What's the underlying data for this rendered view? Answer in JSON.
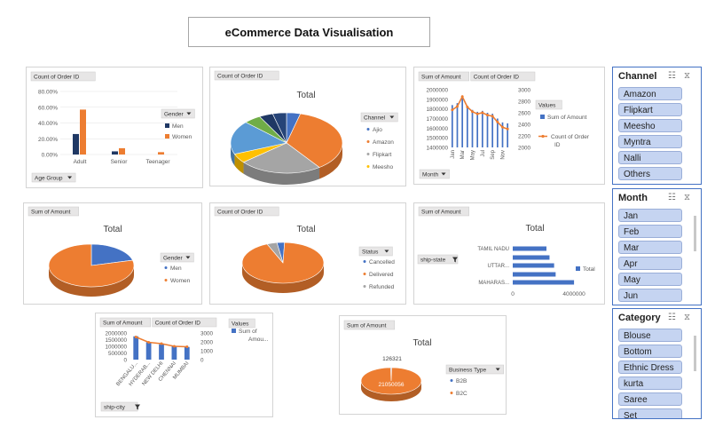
{
  "page_title": "eCommerce Data Visualisation",
  "colors": {
    "blue": "#4472c4",
    "orange": "#ed7d31",
    "gray": "#a5a5a5",
    "yellow": "#ffc000",
    "lightblue": "#5b9bd5",
    "green": "#70ad47",
    "navy": "#1f3864",
    "pill": "#e7e6e6"
  },
  "icons": {
    "filter": "filter-icon",
    "multi": "multi-select-icon",
    "clear": "clear-filter-icon",
    "dropdown": "dropdown-arrow-icon"
  },
  "charts": {
    "c1": {
      "field_btn": "Count of Order ID",
      "yticks": [
        "80.00%",
        "60.00%",
        "40.00%",
        "20.00%",
        "0.00%"
      ],
      "categories": [
        "Adult",
        "Senior",
        "Teenager"
      ],
      "legend_title": "Gender",
      "legend": [
        "Men",
        "Women"
      ],
      "axis_btn": "Age Group"
    },
    "c2": {
      "field_btn": "Count of Order ID",
      "title": "Total",
      "legend_title": "Channel",
      "legend": [
        "Ajio",
        "Amazon",
        "Flipkart",
        "Meesho"
      ]
    },
    "c3": {
      "field_btns": [
        "Sum of Amount",
        "Count of Order ID"
      ],
      "yticks_left": [
        "2000000",
        "1900000",
        "1800000",
        "1700000",
        "1600000",
        "1500000",
        "1400000"
      ],
      "yticks_right": [
        "3000",
        "2800",
        "2600",
        "2400",
        "2200",
        "2000"
      ],
      "xticks": [
        "Jan",
        "Mar",
        "May",
        "Jul",
        "Sep",
        "Nov"
      ],
      "legend_title": "Values",
      "legend": [
        "Sum of Amount",
        "Count of Order ID"
      ],
      "axis_btn": "Month"
    },
    "c4": {
      "field_btn": "Sum of Amount",
      "title": "Total",
      "legend_title": "Gender",
      "legend": [
        "Men",
        "Women"
      ]
    },
    "c5": {
      "field_btn": "Count of Order ID",
      "title": "Total",
      "legend_title": "Status",
      "legend": [
        "Cancelled",
        "Delivered",
        "Refunded"
      ]
    },
    "c6": {
      "field_btn": "Sum of Amount",
      "title": "Total",
      "axis_btn": "ship-state",
      "categories": [
        "TAMIL NADU",
        "UTTAR...",
        "MAHARAS..."
      ],
      "xticks": [
        "0",
        "4000000"
      ],
      "legend": [
        "Total"
      ]
    },
    "c7": {
      "field_btns": [
        "Sum of Amount",
        "Count of Order ID"
      ],
      "yticks_left": [
        "2000000",
        "1500000",
        "1000000",
        "500000",
        "0"
      ],
      "yticks_right": [
        "3000",
        "2000",
        "1000",
        "0"
      ],
      "categories": [
        "BENGALU...",
        "HYDERAB...",
        "NEW DELHI",
        "CHENNAI",
        "MUMBAI"
      ],
      "legend_title": "Values",
      "legend": [
        "Sum of Amou..."
      ],
      "axis_btn": "ship-city"
    },
    "c8": {
      "field_btn": "Sum of Amount",
      "title": "Total",
      "labels": [
        "126321",
        "21050056"
      ],
      "legend_title": "Business Type",
      "legend": [
        "B2B",
        "B2C"
      ]
    }
  },
  "chart_data": [
    {
      "type": "bar",
      "title": "",
      "categories": [
        "Adult",
        "Senior",
        "Teenager"
      ],
      "series": [
        {
          "name": "Men",
          "values": [
            0.26,
            0.04,
            0.0
          ]
        },
        {
          "name": "Women",
          "values": [
            0.57,
            0.08,
            0.03
          ]
        }
      ],
      "ylim": [
        0,
        0.8
      ]
    },
    {
      "type": "pie",
      "title": "Total",
      "slices": [
        {
          "label": "Ajio",
          "value": 0.04
        },
        {
          "label": "Amazon",
          "value": 0.36
        },
        {
          "label": "Flipkart",
          "value": 0.24
        },
        {
          "label": "Meesho",
          "value": 0.05
        },
        {
          "label": "",
          "value": 0.18
        },
        {
          "label": "",
          "value": 0.05
        },
        {
          "label": "",
          "value": 0.04
        },
        {
          "label": "",
          "value": 0.04
        }
      ]
    },
    {
      "type": "line",
      "title": "",
      "x": [
        "Jan",
        "Feb",
        "Mar",
        "Apr",
        "May",
        "Jun",
        "Jul",
        "Aug",
        "Sep",
        "Oct",
        "Nov",
        "Dec"
      ],
      "series": [
        {
          "name": "Sum of Amount",
          "values": [
            1840000,
            1860000,
            1910000,
            1830000,
            1790000,
            1770000,
            1780000,
            1760000,
            1750000,
            1700000,
            1660000,
            1650000
          ]
        },
        {
          "name": "Count of Order ID",
          "values": [
            2650,
            2710,
            2880,
            2700,
            2620,
            2580,
            2600,
            2560,
            2540,
            2440,
            2350,
            2320
          ]
        }
      ],
      "ylim": [
        1400000,
        2000000
      ],
      "y2lim": [
        2000,
        3000
      ]
    },
    {
      "type": "pie",
      "title": "Total",
      "slices": [
        {
          "label": "Men",
          "value": 0.21
        },
        {
          "label": "Women",
          "value": 0.79
        }
      ]
    },
    {
      "type": "pie",
      "title": "Total",
      "slices": [
        {
          "label": "Cancelled",
          "value": 0.03
        },
        {
          "label": "Delivered",
          "value": 0.93
        },
        {
          "label": "Refunded",
          "value": 0.04
        }
      ]
    },
    {
      "type": "bar",
      "title": "Total",
      "categories": [
        "MAHARAS...",
        "",
        "UTTAR...",
        "",
        "TAMIL NADU"
      ],
      "values": [
        4000000,
        2800000,
        2700000,
        2400000,
        2200000
      ],
      "xlim": [
        0,
        5500000
      ]
    },
    {
      "type": "bar",
      "title": "",
      "categories": [
        "BENGALU...",
        "HYDERAB...",
        "NEW DELHI",
        "CHENNAI",
        "MUMBAI"
      ],
      "series": [
        {
          "name": "Sum of Amount",
          "values": [
            1750000,
            1300000,
            1150000,
            1000000,
            950000
          ]
        },
        {
          "name": "Count of Order ID",
          "values": [
            2550,
            1950,
            1800,
            1500,
            1450
          ]
        }
      ],
      "ylim": [
        0,
        2000000
      ],
      "y2lim": [
        0,
        3000
      ]
    },
    {
      "type": "pie",
      "title": "Total",
      "slices": [
        {
          "label": "B2B",
          "value": 126321
        },
        {
          "label": "B2C",
          "value": 21050056
        }
      ]
    }
  ],
  "slicers": [
    {
      "id": "channel",
      "title": "Channel",
      "items": [
        "Amazon",
        "Flipkart",
        "Meesho",
        "Myntra",
        "Nalli",
        "Others"
      ]
    },
    {
      "id": "month",
      "title": "Month",
      "items": [
        "Jan",
        "Feb",
        "Mar",
        "Apr",
        "May",
        "Jun"
      ]
    },
    {
      "id": "category",
      "title": "Category",
      "items": [
        "Blouse",
        "Bottom",
        "Ethnic Dress",
        "kurta",
        "Saree",
        "Set"
      ]
    }
  ]
}
